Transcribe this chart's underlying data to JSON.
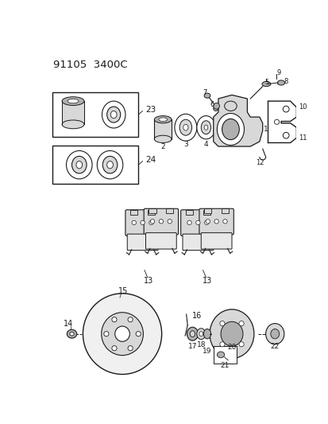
{
  "title": "91105  3400C",
  "bg_color": "#ffffff",
  "line_color": "#1a1a1a",
  "gray_light": "#d8d8d8",
  "gray_mid": "#b0b0b0",
  "gray_dark": "#888888"
}
